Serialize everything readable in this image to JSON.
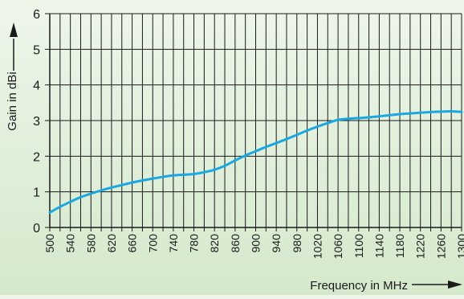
{
  "chart_data": {
    "type": "line",
    "xlabel": "Frequency in MHz",
    "ylabel": "Gain in dBi",
    "xlim": [
      500,
      1300
    ],
    "ylim": [
      0,
      6
    ],
    "x_ticks": [
      500,
      540,
      580,
      620,
      660,
      700,
      740,
      780,
      820,
      860,
      900,
      940,
      980,
      1020,
      1060,
      1100,
      1140,
      1180,
      1220,
      1260,
      1300
    ],
    "y_ticks": [
      0,
      1,
      2,
      3,
      4,
      5,
      6
    ],
    "x_minor_step": 20,
    "grid": true,
    "series": [
      {
        "x": [
          500,
          520,
          540,
          560,
          580,
          600,
          620,
          640,
          660,
          680,
          700,
          720,
          740,
          760,
          780,
          800,
          820,
          840,
          860,
          880,
          900,
          920,
          940,
          960,
          980,
          1000,
          1020,
          1040,
          1060,
          1080,
          1100,
          1120,
          1140,
          1160,
          1180,
          1200,
          1220,
          1240,
          1260,
          1280,
          1300
        ],
        "y": [
          0.42,
          0.58,
          0.72,
          0.85,
          0.95,
          1.04,
          1.12,
          1.19,
          1.26,
          1.32,
          1.37,
          1.42,
          1.46,
          1.48,
          1.5,
          1.55,
          1.62,
          1.73,
          1.88,
          2.02,
          2.14,
          2.26,
          2.37,
          2.48,
          2.6,
          2.72,
          2.83,
          2.93,
          3.02,
          3.05,
          3.07,
          3.09,
          3.12,
          3.15,
          3.18,
          3.2,
          3.22,
          3.24,
          3.25,
          3.26,
          3.24
        ]
      }
    ]
  },
  "colors": {
    "line": "#1aa8e2",
    "grid": "#1a1a1a",
    "text": "#1a1a1a"
  }
}
